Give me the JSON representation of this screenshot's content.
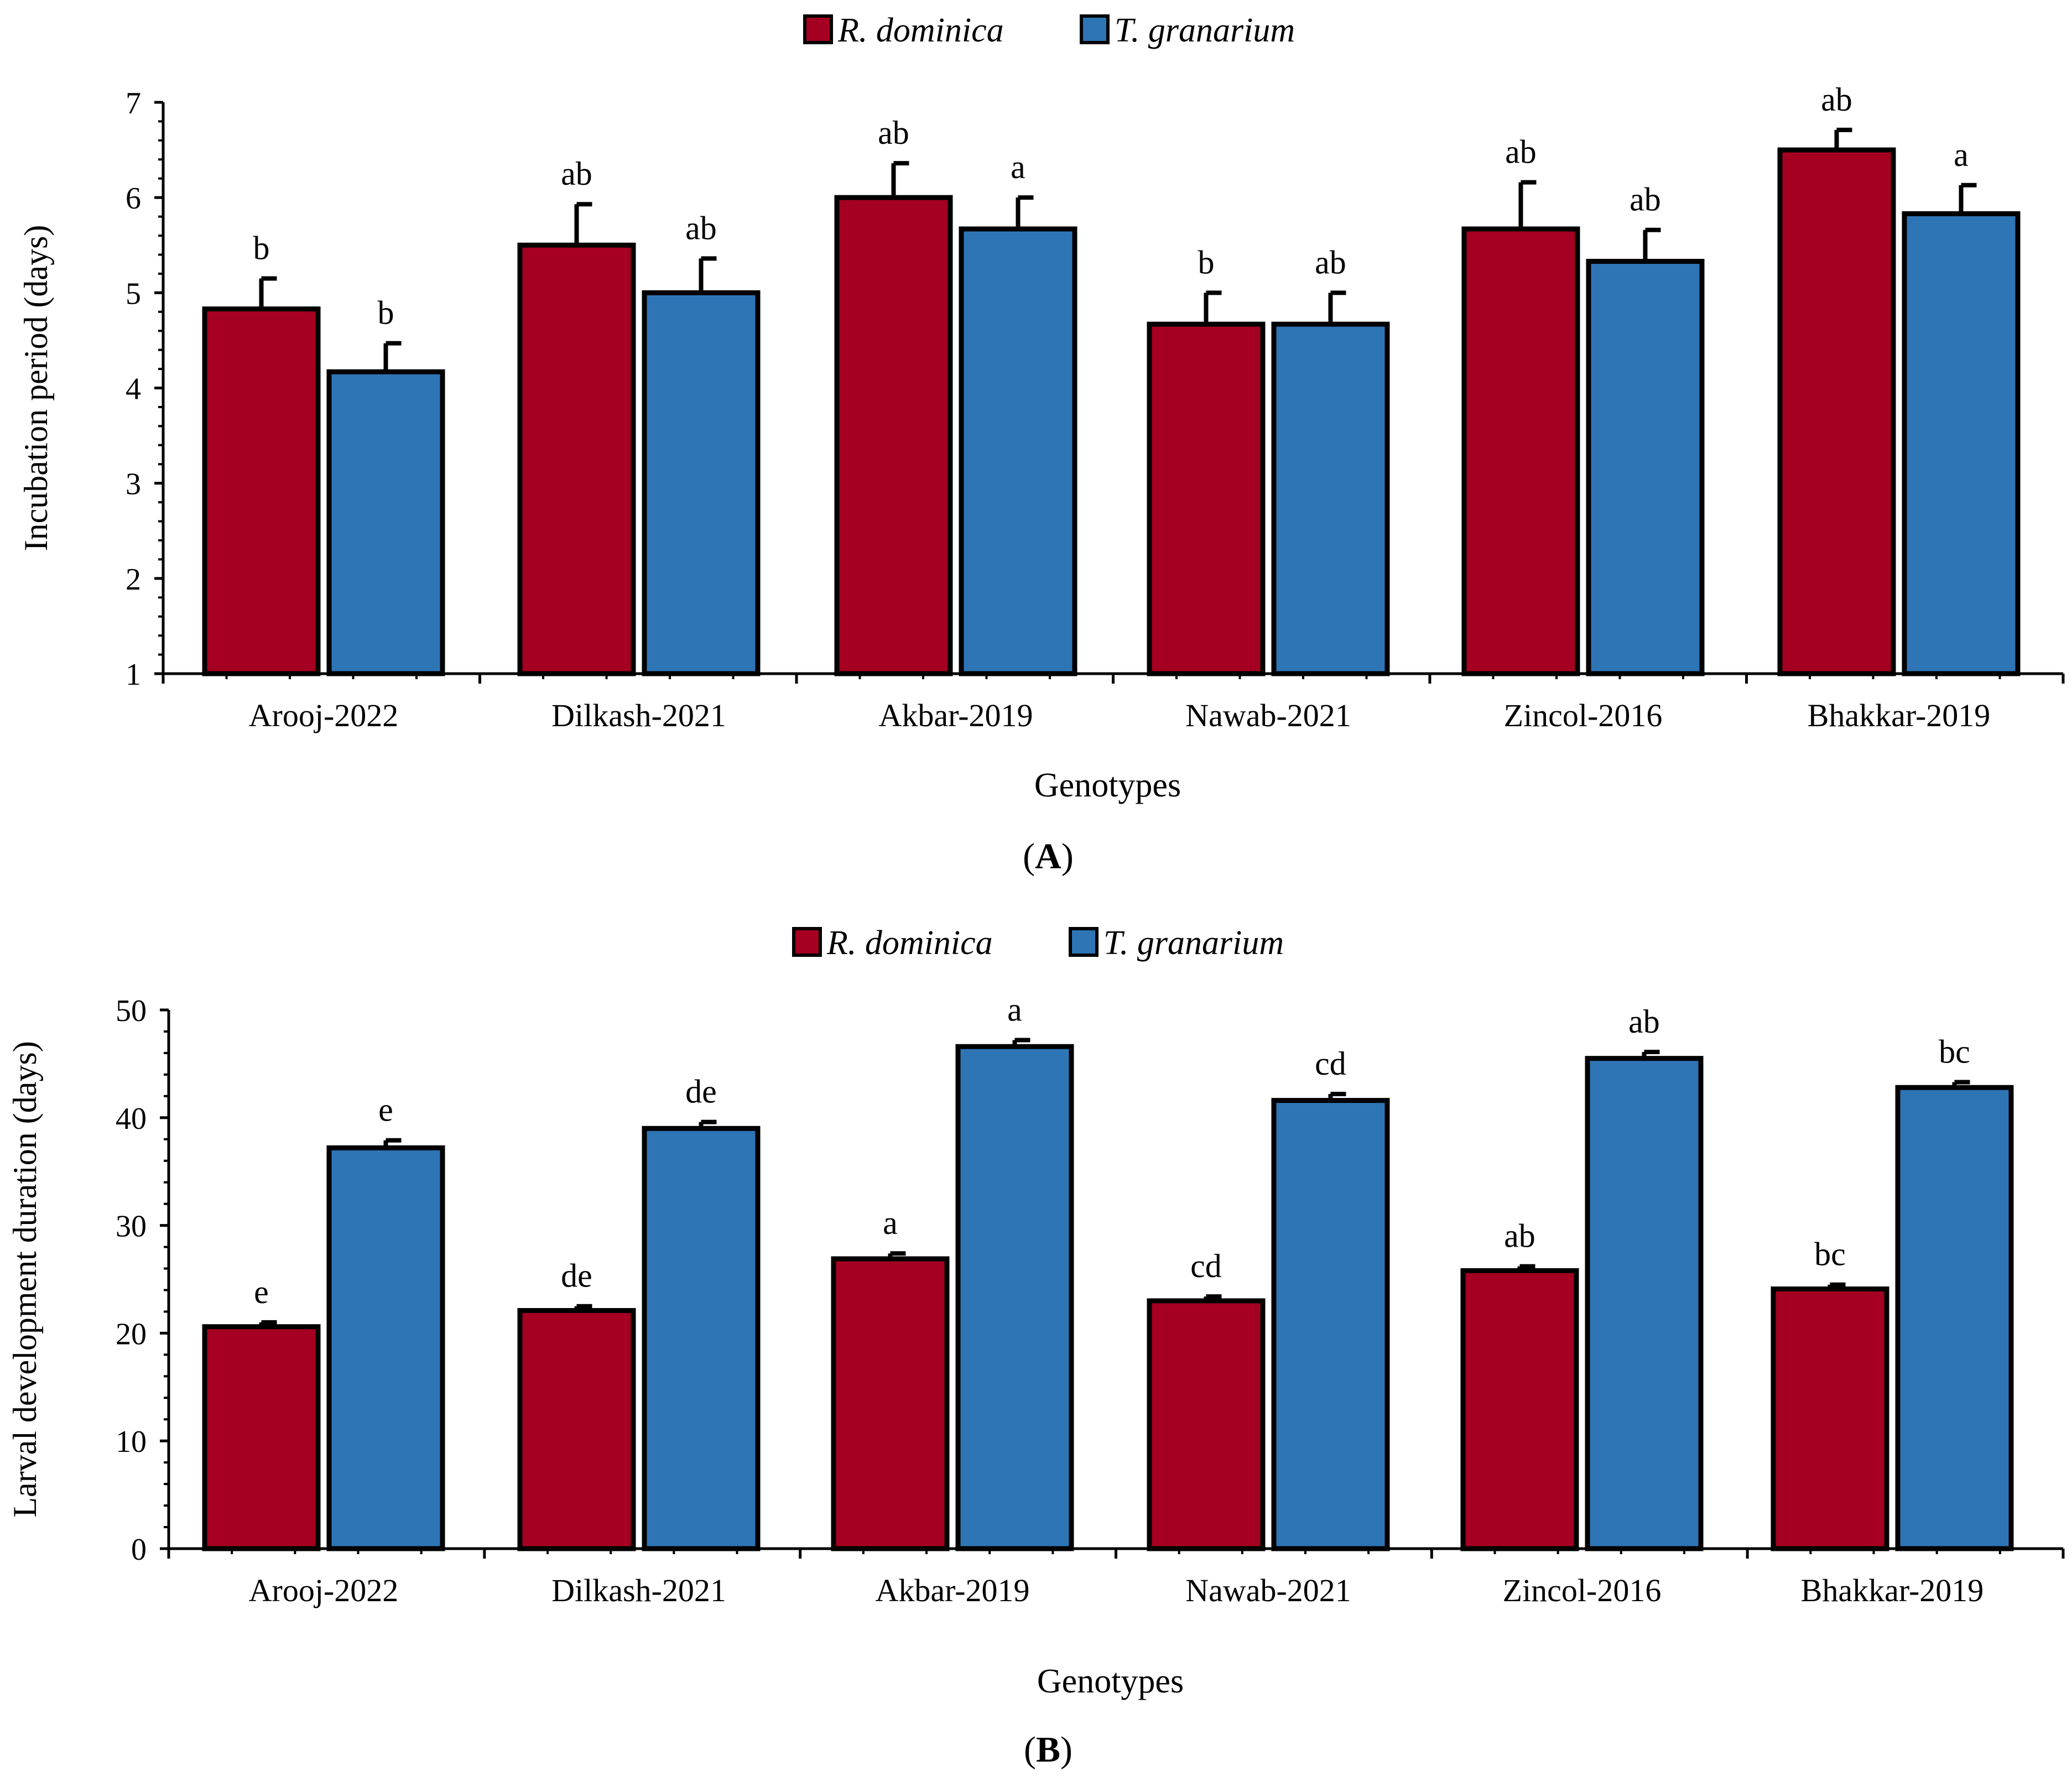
{
  "colors": {
    "series_1": "#A50021",
    "series_2": "#2E75B6",
    "outline": "#000000"
  },
  "chart_data": [
    {
      "type": "bar",
      "panel_label": "A",
      "title": "",
      "xlabel": "Genotypes",
      "ylabel": "Incubation period (days)",
      "ylim": [
        1,
        7
      ],
      "yticks": [
        1,
        2,
        3,
        4,
        5,
        6,
        7
      ],
      "grid": false,
      "legend_position": "top-center",
      "categories": [
        "Arooj-2022",
        "Dilkash-2021",
        "Akbar-2019",
        "Nawab-2021",
        "Zincol-2016",
        "Bhakkar-2019"
      ],
      "series": [
        {
          "name": "R. dominica",
          "values": [
            4.83,
            5.5,
            6.0,
            4.67,
            5.67,
            6.5
          ],
          "errors": [
            0.32,
            0.43,
            0.36,
            0.33,
            0.49,
            0.21
          ],
          "labels": [
            "b",
            "ab",
            "ab",
            "b",
            "ab",
            "ab"
          ]
        },
        {
          "name": "T. granarium",
          "values": [
            4.17,
            5.0,
            5.67,
            4.67,
            5.33,
            5.83
          ],
          "errors": [
            0.3,
            0.36,
            0.33,
            0.33,
            0.33,
            0.3
          ],
          "labels": [
            "b",
            "ab",
            "a",
            "ab",
            "ab",
            "a"
          ]
        }
      ]
    },
    {
      "type": "bar",
      "panel_label": "B",
      "title": "",
      "xlabel": "Genotypes",
      "ylabel": "Larval development duration (days)",
      "ylim": [
        0,
        50
      ],
      "yticks": [
        0,
        10,
        20,
        30,
        40,
        50
      ],
      "grid": false,
      "legend_position": "top-center",
      "categories": [
        "Arooj-2022",
        "Dilkash-2021",
        "Akbar-2019",
        "Nawab-2021",
        "Zincol-2016",
        "Bhakkar-2019"
      ],
      "series": [
        {
          "name": "R. dominica",
          "values": [
            20.6,
            22.1,
            26.9,
            23.0,
            25.8,
            24.1
          ],
          "errors": [
            0.4,
            0.4,
            0.5,
            0.4,
            0.4,
            0.4
          ],
          "labels": [
            "e",
            "de",
            "a",
            "cd",
            "ab",
            "bc"
          ]
        },
        {
          "name": "T. granarium",
          "values": [
            37.2,
            39.0,
            46.6,
            41.6,
            45.5,
            42.8
          ],
          "errors": [
            0.7,
            0.6,
            0.6,
            0.6,
            0.6,
            0.5
          ],
          "labels": [
            "e",
            "de",
            "a",
            "cd",
            "ab",
            "bc"
          ]
        }
      ]
    }
  ]
}
